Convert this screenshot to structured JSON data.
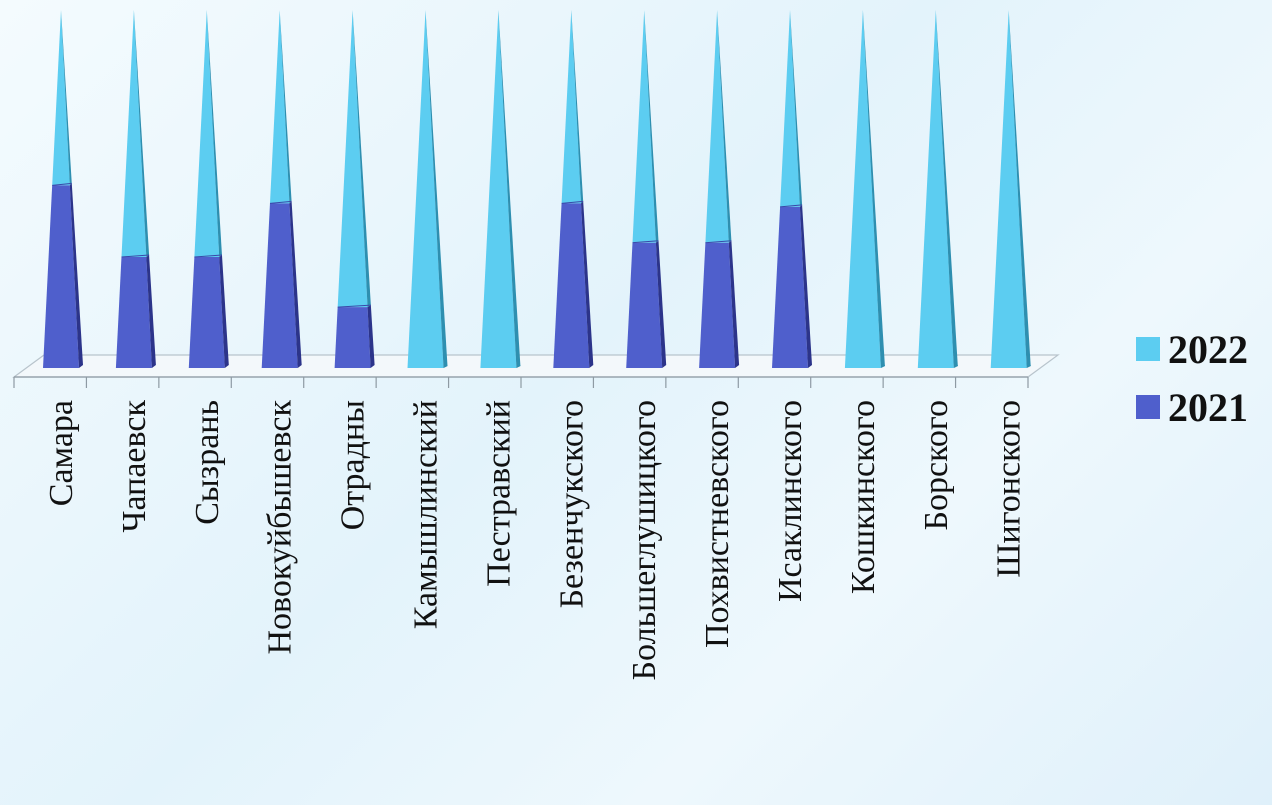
{
  "chart_data": {
    "type": "bar",
    "style": "3d-cone-stacked-100",
    "categories": [
      "Самара",
      "Чапаевск",
      "Сызрань",
      "Новокуйбышевск",
      "Отрадны",
      "Камышлинский",
      "Пестравский",
      "Безенчукского",
      "Большеглушицкого",
      "Похвистневского",
      "Исаклинского",
      "Кошкинского",
      "Борского",
      "Шигонского"
    ],
    "series": [
      {
        "name": "2021",
        "color": "#4f5fcc",
        "values": [
          0.51,
          0.31,
          0.31,
          0.46,
          0.17,
          0,
          0,
          0.46,
          0.35,
          0.35,
          0.45,
          0,
          0,
          0
        ]
      },
      {
        "name": "2022",
        "color": "#5ccdf1",
        "values": [
          0.49,
          0.69,
          0.69,
          0.54,
          0.83,
          1,
          1,
          0.54,
          0.65,
          0.65,
          0.55,
          1,
          1,
          1
        ]
      }
    ],
    "legend_position": "right",
    "grid": false,
    "title": "",
    "xlabel": "",
    "ylabel": ""
  },
  "legend": [
    {
      "label": "2022",
      "color": "#5ccdf1"
    },
    {
      "label": "2021",
      "color": "#4f5fcc"
    }
  ]
}
